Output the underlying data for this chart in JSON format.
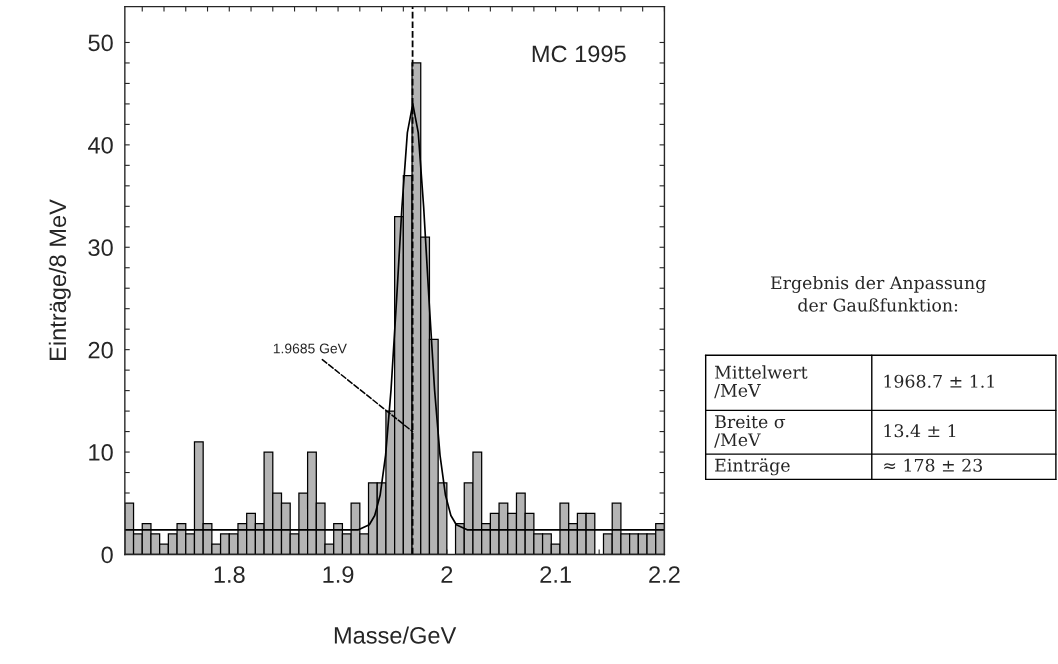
{
  "chart_data": {
    "type": "histogram",
    "title": "MC 1995",
    "xlabel": "Masse/GeV",
    "ylabel": "Einträge/8 MeV",
    "bins": [
      1.704,
      1.712,
      1.72,
      1.728,
      1.736,
      1.744,
      1.752,
      1.76,
      1.768,
      1.776,
      1.784,
      1.792,
      1.8,
      1.808,
      1.816,
      1.824,
      1.832,
      1.84,
      1.848,
      1.856,
      1.864,
      1.872,
      1.88,
      1.888,
      1.896,
      1.904,
      1.912,
      1.92,
      1.928,
      1.936,
      1.944,
      1.952,
      1.96,
      1.968,
      1.976,
      1.984,
      1.992,
      2.0,
      2.008,
      2.016,
      2.024,
      2.032,
      2.04,
      2.048,
      2.056,
      2.064,
      2.072,
      2.08,
      2.088,
      2.096,
      2.104,
      2.112,
      2.12,
      2.128,
      2.136,
      2.144,
      2.152,
      2.16,
      2.168,
      2.176,
      2.184,
      2.192,
      2.2
    ],
    "values": [
      5,
      2,
      3,
      2,
      1,
      2,
      3,
      2,
      11,
      3,
      1,
      2,
      2,
      3,
      4,
      3,
      10,
      6,
      5,
      2,
      6,
      10,
      5,
      1,
      3,
      2,
      5,
      2,
      7,
      7,
      14,
      33,
      37,
      48,
      31,
      21,
      7,
      0,
      3,
      7,
      10,
      3,
      4,
      5,
      4,
      6,
      4,
      2,
      2,
      1,
      5,
      3,
      4,
      4,
      0,
      2,
      5,
      2,
      2,
      2,
      2,
      3
    ],
    "color": "#b4b4b4",
    "series": [
      {
        "type": "line",
        "color": "#000000",
        "x": [
          1.704,
          1.9187,
          1.9287,
          1.9337,
          1.9387,
          1.9437,
          1.9487,
          1.9537,
          1.9587,
          1.9637,
          1.9687,
          1.9737,
          1.9787,
          1.9837,
          1.9887,
          1.9937,
          1.9987,
          2.0037,
          2.0087,
          2.0187,
          2.2
        ],
        "values": [
          2.4,
          2.4,
          2.9,
          3.8,
          5.8,
          9.7,
          16.1,
          24.7,
          33.9,
          41.2,
          44,
          41.2,
          33.9,
          24.7,
          16.1,
          9.7,
          5.8,
          3.8,
          2.9,
          2.4,
          2.4
        ]
      }
    ],
    "ref_lines": [
      {
        "axis": "x",
        "value": 1.9685,
        "line_style": "dashed",
        "color": "#000000"
      }
    ],
    "annotations": [
      {
        "text": "1.9685 GeV",
        "x": 1.9685,
        "y": 12
      },
      "Ergebnis der Anpassung der Gaußfunktion:",
      "Mittelwert\n/MeV",
      "1968.7 ± 1.1",
      "Breite σ\n/MeV",
      "13.4 ± 1",
      "Einträge",
      "≈ 178 ± 23"
    ],
    "xlim": [
      1.704,
      2.2
    ],
    "ylim": [
      0,
      53.5
    ],
    "xticks": [
      {
        "value": 1.72,
        "label": null
      },
      {
        "value": 1.74,
        "label": null
      },
      {
        "value": 1.76,
        "label": null
      },
      {
        "value": 1.78,
        "label": null
      },
      {
        "value": 1.8,
        "label": "1.8"
      },
      {
        "value": 1.82,
        "label": null
      },
      {
        "value": 1.84,
        "label": null
      },
      {
        "value": 1.86,
        "label": null
      },
      {
        "value": 1.88,
        "label": null
      },
      {
        "value": 1.9,
        "label": "1.9"
      },
      {
        "value": 1.92,
        "label": null
      },
      {
        "value": 1.94,
        "label": null
      },
      {
        "value": 1.96,
        "label": null
      },
      {
        "value": 1.98,
        "label": null
      },
      {
        "value": 2.0,
        "label": "2"
      },
      {
        "value": 2.02,
        "label": null
      },
      {
        "value": 2.04,
        "label": null
      },
      {
        "value": 2.06,
        "label": null
      },
      {
        "value": 2.08,
        "label": null
      },
      {
        "value": 2.1,
        "label": "2.1"
      },
      {
        "value": 2.12,
        "label": null
      },
      {
        "value": 2.14,
        "label": null
      },
      {
        "value": 2.16,
        "label": null
      },
      {
        "value": 2.18,
        "label": null
      },
      {
        "value": 2.2,
        "label": "2.2"
      }
    ],
    "yticks": [
      0,
      {
        "value": 2,
        "label": null
      },
      {
        "value": 4,
        "label": null
      },
      {
        "value": 6,
        "label": null
      },
      {
        "value": 8,
        "label": null
      },
      10,
      {
        "value": 12,
        "label": null
      },
      {
        "value": 14,
        "label": null
      },
      {
        "value": 16,
        "label": null
      },
      {
        "value": 18,
        "label": null
      },
      20,
      {
        "value": 22,
        "label": null
      },
      {
        "value": 24,
        "label": null
      },
      {
        "value": 26,
        "label": null
      },
      {
        "value": 28,
        "label": null
      },
      30,
      {
        "value": 32,
        "label": null
      },
      {
        "value": 34,
        "label": null
      },
      {
        "value": 36,
        "label": null
      },
      {
        "value": 38,
        "label": null
      },
      40,
      {
        "value": 42,
        "label": null
      },
      {
        "value": 44,
        "label": null
      },
      {
        "value": 46,
        "label": null
      },
      {
        "value": 48,
        "label": null
      },
      50
    ],
    "grid": false,
    "legend": false
  }
}
